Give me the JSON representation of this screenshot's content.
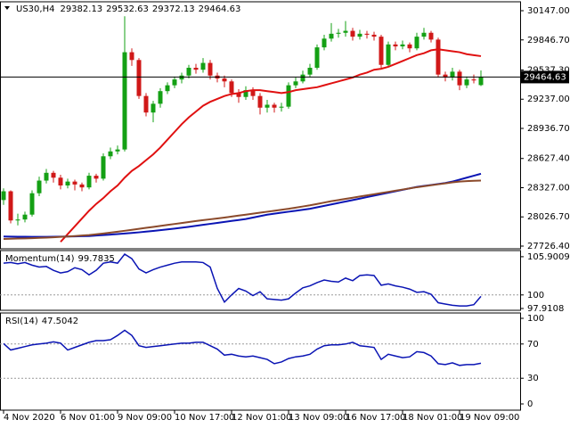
{
  "chart_data": [
    {
      "type": "candlestick",
      "symbol": "US30,H4",
      "categories": [
        "4 Nov 2020",
        null,
        null,
        null,
        null,
        null,
        null,
        null,
        "6 Nov 01:00",
        null,
        null,
        null,
        null,
        null,
        null,
        null,
        "9 Nov 09:00",
        null,
        null,
        null,
        null,
        null,
        null,
        null,
        "10 Nov 17:00",
        null,
        null,
        null,
        null,
        null,
        null,
        null,
        "12 Nov 01:00",
        null,
        null,
        null,
        null,
        null,
        null,
        null,
        "13 Nov 09:00",
        null,
        null,
        null,
        null,
        null,
        null,
        null,
        "16 Nov 17:00",
        null,
        null,
        null,
        null,
        null,
        null,
        null,
        "18 Nov 01:00",
        null,
        null,
        null,
        null,
        null,
        null,
        null,
        "19 Nov 09:00",
        null,
        null,
        null
      ],
      "ohlc": [
        [
          28200,
          28320,
          28150,
          28290
        ],
        [
          28290,
          28300,
          27960,
          27990
        ],
        [
          27990,
          28060,
          27940,
          28000
        ],
        [
          28000,
          28080,
          27970,
          28050
        ],
        [
          28050,
          28300,
          28030,
          28270
        ],
        [
          28270,
          28440,
          28240,
          28400
        ],
        [
          28400,
          28520,
          28370,
          28480
        ],
        [
          28480,
          28500,
          28380,
          28430
        ],
        [
          28430,
          28460,
          28310,
          28350
        ],
        [
          28350,
          28420,
          28320,
          28390
        ],
        [
          28390,
          28410,
          28300,
          28360
        ],
        [
          28360,
          28380,
          28290,
          28330
        ],
        [
          28330,
          28480,
          28310,
          28450
        ],
        [
          28450,
          28470,
          28380,
          28420
        ],
        [
          28420,
          28680,
          28400,
          28650
        ],
        [
          28650,
          28740,
          28620,
          28700
        ],
        [
          28700,
          28760,
          28670,
          28720
        ],
        [
          28720,
          30090,
          28700,
          29720
        ],
        [
          29720,
          29760,
          29580,
          29640
        ],
        [
          29640,
          29660,
          29240,
          29270
        ],
        [
          29270,
          29300,
          29060,
          29100
        ],
        [
          29100,
          29220,
          29000,
          29190
        ],
        [
          29190,
          29350,
          29150,
          29320
        ],
        [
          29320,
          29410,
          29290,
          29380
        ],
        [
          29380,
          29470,
          29350,
          29440
        ],
        [
          29440,
          29510,
          29400,
          29480
        ],
        [
          29480,
          29590,
          29450,
          29560
        ],
        [
          29560,
          29600,
          29500,
          29540
        ],
        [
          29540,
          29660,
          29510,
          29610
        ],
        [
          29610,
          29640,
          29440,
          29480
        ],
        [
          29480,
          29510,
          29410,
          29450
        ],
        [
          29450,
          29480,
          29360,
          29420
        ],
        [
          29420,
          29440,
          29260,
          29300
        ],
        [
          29300,
          29340,
          29200,
          29260
        ],
        [
          29260,
          29370,
          29230,
          29330
        ],
        [
          29330,
          29360,
          29230,
          29270
        ],
        [
          29270,
          29300,
          29080,
          29150
        ],
        [
          29150,
          29230,
          29100,
          29180
        ],
        [
          29180,
          29200,
          29100,
          29150
        ],
        [
          29150,
          29200,
          29110,
          29160
        ],
        [
          29160,
          29410,
          29140,
          29380
        ],
        [
          29380,
          29460,
          29350,
          29420
        ],
        [
          29420,
          29530,
          29400,
          29490
        ],
        [
          29490,
          29600,
          29460,
          29560
        ],
        [
          29560,
          29800,
          29540,
          29770
        ],
        [
          29770,
          29900,
          29740,
          29860
        ],
        [
          29860,
          30020,
          29830,
          29910
        ],
        [
          29910,
          29960,
          29870,
          29920
        ],
        [
          29920,
          30040,
          29880,
          29940
        ],
        [
          29940,
          29970,
          29840,
          29880
        ],
        [
          29880,
          29950,
          29850,
          29910
        ],
        [
          29910,
          29940,
          29860,
          29900
        ],
        [
          29900,
          29930,
          29840,
          29880
        ],
        [
          29880,
          29900,
          29560,
          29590
        ],
        [
          29590,
          29830,
          29570,
          29800
        ],
        [
          29800,
          29830,
          29740,
          29780
        ],
        [
          29780,
          29840,
          29750,
          29800
        ],
        [
          29800,
          29820,
          29720,
          29760
        ],
        [
          29760,
          29920,
          29740,
          29880
        ],
        [
          29880,
          29970,
          29850,
          29920
        ],
        [
          29920,
          29940,
          29820,
          29850
        ],
        [
          29850,
          29870,
          29460,
          29490
        ],
        [
          29490,
          29520,
          29420,
          29460
        ],
        [
          29460,
          29560,
          29430,
          29520
        ],
        [
          29520,
          29540,
          29330,
          29380
        ],
        [
          29380,
          29470,
          29350,
          29440
        ],
        [
          29440,
          29490,
          29400,
          29430
        ],
        [
          29382.13,
          29532.63,
          29372.13,
          29464.63
        ]
      ],
      "up_color": "#14a014",
      "down_color": "#d01818",
      "overlays": [
        {
          "color": "#e01010",
          "values": [
            null,
            null,
            null,
            null,
            null,
            null,
            null,
            null,
            27770,
            27850,
            27930,
            28010,
            28090,
            28160,
            28220,
            28290,
            28350,
            28430,
            28500,
            28550,
            28610,
            28670,
            28740,
            28820,
            28900,
            28980,
            29050,
            29110,
            29170,
            29210,
            29240,
            29270,
            29290,
            29300,
            29320,
            29330,
            29330,
            29320,
            29310,
            29300,
            29310,
            29330,
            29340,
            29350,
            29360,
            29380,
            29400,
            29420,
            29440,
            29460,
            29490,
            29510,
            29540,
            29550,
            29570,
            29600,
            29630,
            29660,
            29690,
            29710,
            29740,
            29750,
            29740,
            29730,
            29720,
            29700,
            29690,
            29680
          ]
        },
        {
          "color": "#0a14b4",
          "values": [
            27825,
            27824,
            27823,
            27823,
            27822,
            27822,
            27822,
            27823,
            27824,
            27825,
            27826,
            27828,
            27830,
            27835,
            27840,
            27845,
            27850,
            27856,
            27862,
            27868,
            27875,
            27882,
            27890,
            27898,
            27906,
            27915,
            27925,
            27935,
            27945,
            27955,
            27965,
            27975,
            27985,
            27995,
            28005,
            28020,
            28035,
            28050,
            28060,
            28070,
            28080,
            28090,
            28100,
            28110,
            28125,
            28140,
            28155,
            28170,
            28185,
            28200,
            28215,
            28230,
            28245,
            28260,
            28275,
            28290,
            28305,
            28320,
            28335,
            28345,
            28355,
            28365,
            28375,
            28390,
            28410,
            28430,
            28450,
            28470
          ]
        },
        {
          "color": "#8b4a2b",
          "values": [
            27800,
            27802,
            27804,
            27806,
            27808,
            27811,
            27814,
            27817,
            27821,
            27825,
            27830,
            27835,
            27840,
            27848,
            27856,
            27865,
            27874,
            27884,
            27894,
            27904,
            27914,
            27924,
            27934,
            27944,
            27954,
            27964,
            27974,
            27984,
            27993,
            28002,
            28011,
            28020,
            28030,
            28040,
            28050,
            28060,
            28070,
            28080,
            28090,
            28100,
            28110,
            28122,
            28134,
            28146,
            28160,
            28174,
            28188,
            28200,
            28212,
            28224,
            28236,
            28248,
            28260,
            28272,
            28284,
            28296,
            28308,
            28320,
            28332,
            28342,
            28352,
            28362,
            28372,
            28382,
            28390,
            28395,
            28398,
            28400
          ]
        }
      ],
      "ylim": [
        27698.9,
        30238.7
      ],
      "yticks": [
        {
          "value": 30147,
          "label": "30147.00"
        },
        {
          "value": 29846.7,
          "label": "29846.70"
        },
        {
          "value": 29537.3,
          "label": "29537.30"
        },
        {
          "value": 29237,
          "label": "29237.00"
        },
        {
          "value": 28936.7,
          "label": "28936.70"
        },
        {
          "value": 28627.4,
          "label": "28627.40"
        },
        {
          "value": 28327,
          "label": "28327.00"
        },
        {
          "value": 28026.7,
          "label": "28026.70"
        },
        {
          "value": 27726.4,
          "label": "27726.40"
        }
      ]
    },
    {
      "type": "line",
      "label": "Momentum(14)",
      "color": "#0a14b4",
      "values": [
        104.9,
        105.0,
        104.8,
        105.0,
        104.6,
        104.3,
        104.4,
        103.8,
        103.4,
        103.6,
        104.2,
        103.9,
        103.1,
        103.8,
        104.9,
        105.1,
        104.9,
        106.3,
        105.6,
        104.0,
        103.4,
        103.9,
        104.3,
        104.6,
        104.9,
        105.1,
        105.1,
        105.1,
        105.0,
        104.3,
        101.0,
        98.9,
        100.0,
        101.0,
        100.6,
        99.9,
        100.5,
        99.4,
        99.3,
        99.2,
        99.4,
        100.3,
        101.1,
        101.4,
        101.9,
        102.3,
        102.1,
        102.0,
        102.6,
        102.2,
        103.0,
        103.1,
        103.0,
        101.5,
        101.7,
        101.4,
        101.2,
        100.9,
        100.4,
        100.5,
        100.1,
        98.8,
        98.6,
        98.4,
        98.3,
        98.3,
        98.5,
        99.7835
      ],
      "ylim": [
        97.63,
        106.85
      ],
      "yticks": [
        105.9009,
        100,
        97.9108
      ],
      "levels": [
        100
      ]
    },
    {
      "type": "line",
      "label": "RSI(14)",
      "color": "#0a14b4",
      "values": [
        70.5,
        63,
        65,
        67,
        69,
        70,
        71,
        72.5,
        71,
        63,
        66,
        69,
        72,
        74,
        74,
        75,
        80,
        86,
        80,
        68,
        66,
        67,
        68,
        69,
        70,
        71,
        71,
        72,
        72,
        68,
        64,
        57,
        58,
        56,
        55,
        56,
        54,
        52,
        47,
        49,
        53,
        55,
        56,
        58,
        64,
        68,
        69,
        69,
        70,
        72,
        68,
        67,
        66,
        52,
        58,
        56,
        54,
        55,
        61,
        60,
        56,
        47,
        46,
        48,
        45,
        46,
        46,
        47.5042
      ],
      "ylim": [
        -7.3,
        106.25
      ],
      "yticks": [
        100,
        70,
        30,
        0
      ],
      "levels": [
        70,
        30
      ]
    }
  ]
}
